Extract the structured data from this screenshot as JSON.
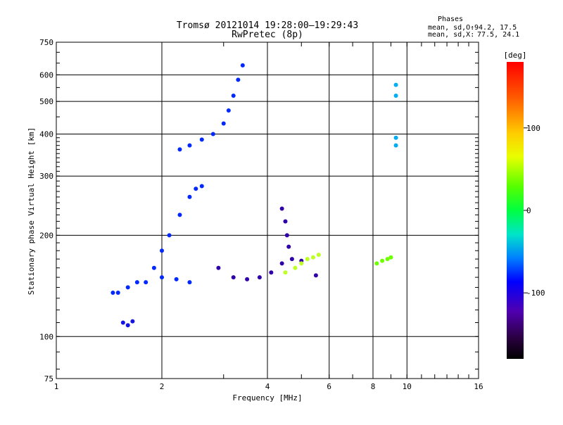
{
  "chart_data": {
    "type": "scatter",
    "title": "Tromsø 20121014 19:28:00–19:29:43",
    "subtitle": "RwPretec (8p)",
    "xlabel": "Frequency [MHz]",
    "ylabel": "Stationary phase Virtual Height [km]",
    "x_scale": "log",
    "y_scale": "log",
    "xlim": [
      1,
      16
    ],
    "ylim": [
      75,
      750
    ],
    "x_ticks": [
      1,
      2,
      4,
      6,
      8,
      10,
      16
    ],
    "x_tick_labels": [
      "1",
      "2",
      "4",
      "6",
      "8",
      "10",
      "16"
    ],
    "y_ticks": [
      75,
      100,
      200,
      300,
      400,
      500,
      600,
      750
    ],
    "y_tick_labels": [
      "75",
      "100",
      "200",
      "300",
      "400",
      "500",
      "600",
      "750"
    ],
    "grid": true,
    "stats": {
      "heading": "Phases",
      "o_label": "mean, sd,O:",
      "o_mean": -94.2,
      "o_sd": 17.5,
      "o_text": "-94.2, 17.5",
      "x_label": "mean, sd,X:",
      "x_mean": 77.5,
      "x_sd": 24.1,
      "x_text": "77.5, 24.1"
    },
    "colorbar": {
      "label": "[deg]",
      "range": [
        -180,
        180
      ],
      "ticks": [
        100,
        0,
        -100
      ],
      "tick_labels": [
        "100",
        "0",
        "-100"
      ]
    },
    "series": [
      {
        "trace": "F2-O upper branch",
        "phase_deg": -100,
        "x": [
          2.25,
          2.4,
          2.6,
          2.8,
          3.0,
          3.1,
          3.2,
          3.3,
          3.4
        ],
        "y": [
          360,
          370,
          385,
          400,
          430,
          470,
          520,
          580,
          640
        ]
      },
      {
        "trace": "F1-O cusp and branch",
        "phase_deg": -100,
        "x": [
          1.5,
          1.7,
          1.9,
          2.0,
          2.1,
          2.25,
          2.4,
          2.5,
          2.6
        ],
        "y": [
          135,
          145,
          160,
          180,
          200,
          230,
          260,
          275,
          280
        ]
      },
      {
        "trace": "E/F lower trace O",
        "phase_deg": -100,
        "x": [
          1.45,
          1.6,
          1.8,
          2.0,
          2.2,
          2.4
        ],
        "y": [
          135,
          140,
          145,
          150,
          148,
          145
        ]
      },
      {
        "trace": "Low echo patch",
        "phase_deg": -110,
        "x": [
          1.55,
          1.6,
          1.65
        ],
        "y": [
          110,
          108,
          111
        ]
      },
      {
        "trace": "X-mode lower trace",
        "phase_deg": -130,
        "x": [
          2.9,
          3.2,
          3.5,
          3.8,
          4.1,
          4.4,
          4.7,
          5.0,
          5.5
        ],
        "y": [
          160,
          150,
          148,
          150,
          155,
          165,
          170,
          168,
          152
        ]
      },
      {
        "trace": "X-mode spur",
        "phase_deg": -130,
        "x": [
          4.4,
          4.5,
          4.55,
          4.6
        ],
        "y": [
          240,
          220,
          200,
          185
        ]
      },
      {
        "trace": "X-mode green patch",
        "phase_deg": 70,
        "x": [
          4.5,
          4.8,
          5.0,
          5.2,
          5.4,
          5.6
        ],
        "y": [
          155,
          160,
          165,
          170,
          172,
          175
        ]
      },
      {
        "trace": "Green patch 8-9 MHz",
        "phase_deg": 50,
        "x": [
          8.2,
          8.5,
          8.8,
          9.0
        ],
        "y": [
          165,
          168,
          170,
          172
        ]
      },
      {
        "trace": "Vertical cyan column",
        "phase_deg": -50,
        "x": [
          9.3,
          9.3,
          9.3,
          9.3
        ],
        "y": [
          370,
          390,
          520,
          560
        ]
      }
    ]
  }
}
